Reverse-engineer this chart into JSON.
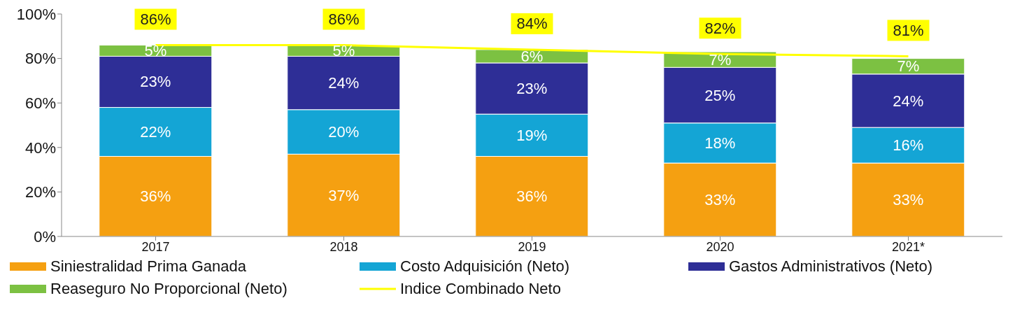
{
  "chart_data": {
    "type": "bar",
    "stacked": true,
    "categories": [
      "2017",
      "2018",
      "2019",
      "2020",
      "2021*"
    ],
    "ylim": [
      0,
      100
    ],
    "yticks": [
      {
        "value": 0,
        "label": "0%"
      },
      {
        "value": 20,
        "label": "20%"
      },
      {
        "value": 40,
        "label": "40%"
      },
      {
        "value": 60,
        "label": "60%"
      },
      {
        "value": 80,
        "label": "80%"
      },
      {
        "value": 100,
        "label": "100%"
      }
    ],
    "series": [
      {
        "name": "Siniestralidad Prima Ganada",
        "color": "#f5a011",
        "values": [
          36,
          37,
          36,
          33,
          33
        ],
        "value_labels": [
          "36%",
          "37%",
          "36%",
          "33%",
          "33%"
        ]
      },
      {
        "name": "Costo Adquisición (Neto)",
        "color": "#14a5d5",
        "values": [
          22,
          20,
          19,
          18,
          16
        ],
        "value_labels": [
          "22%",
          "20%",
          "19%",
          "18%",
          "16%"
        ]
      },
      {
        "name": "Gastos Administrativos (Neto)",
        "color": "#2e2e96",
        "values": [
          23,
          24,
          23,
          25,
          24
        ],
        "value_labels": [
          "23%",
          "24%",
          "23%",
          "25%",
          "24%"
        ]
      },
      {
        "name": "Reaseguro No Proporcional (Neto)",
        "color": "#7cc142",
        "values": [
          5,
          5,
          6,
          7,
          7
        ],
        "value_labels": [
          "5%",
          "5%",
          "6%",
          "7%",
          "7%"
        ]
      },
      {
        "name": "Indice Combinado Neto",
        "type": "line",
        "color": "#ffff00",
        "values": [
          86,
          86,
          84,
          82,
          81
        ],
        "value_labels": [
          "86%",
          "86%",
          "84%",
          "82%",
          "81%"
        ]
      }
    ],
    "legend": "bottom",
    "marker": "none",
    "line_style": "solid"
  }
}
